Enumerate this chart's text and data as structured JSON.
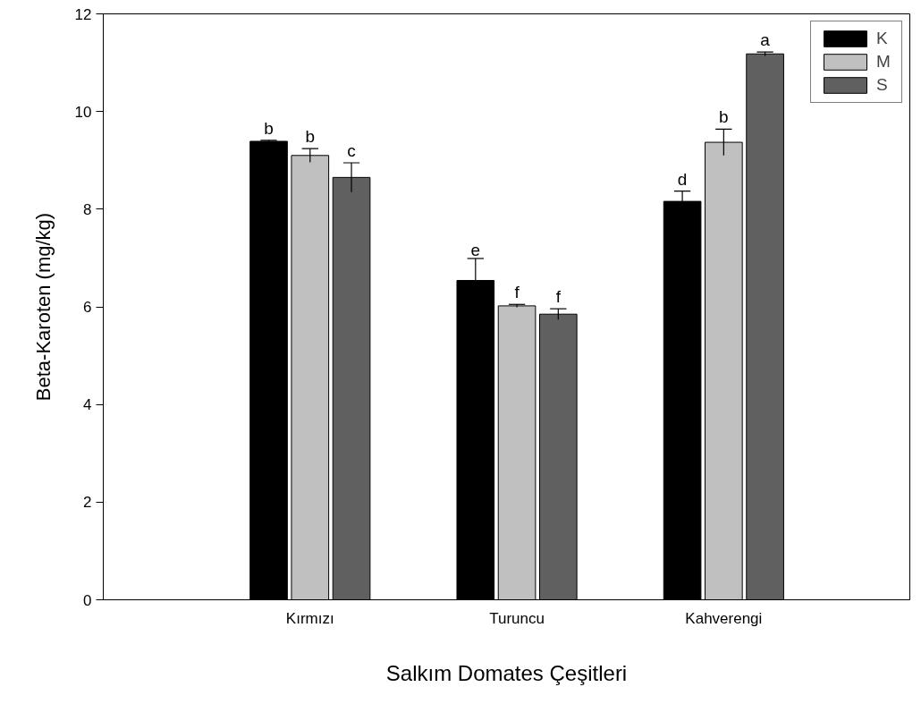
{
  "chart_data": {
    "type": "bar",
    "xlabel": "Salkım Domates Çeşitleri",
    "ylabel": "Beta-Karoten (mg/kg)",
    "categories": [
      "Kırmızı",
      "Turuncu",
      "Kahverengi"
    ],
    "series": [
      {
        "name": "K",
        "color": "#000000",
        "values": [
          9.39,
          6.54,
          8.16
        ],
        "errors": [
          0.02,
          0.45,
          0.21
        ]
      },
      {
        "name": "M",
        "color": "#c0c0c0",
        "values": [
          9.1,
          6.02,
          9.37
        ],
        "errors": [
          0.14,
          0.03,
          0.27
        ]
      },
      {
        "name": "S",
        "color": "#606060",
        "values": [
          8.65,
          5.85,
          11.18
        ],
        "errors": [
          0.3,
          0.11,
          0.04
        ]
      }
    ],
    "ylim": [
      0,
      12
    ],
    "yticks": [
      0,
      2,
      4,
      6,
      8,
      10,
      12
    ],
    "grid": false,
    "legend": "top right",
    "annotations": [
      "b",
      "b",
      "c",
      "e",
      "f",
      "f",
      "d",
      "b",
      "a"
    ]
  }
}
